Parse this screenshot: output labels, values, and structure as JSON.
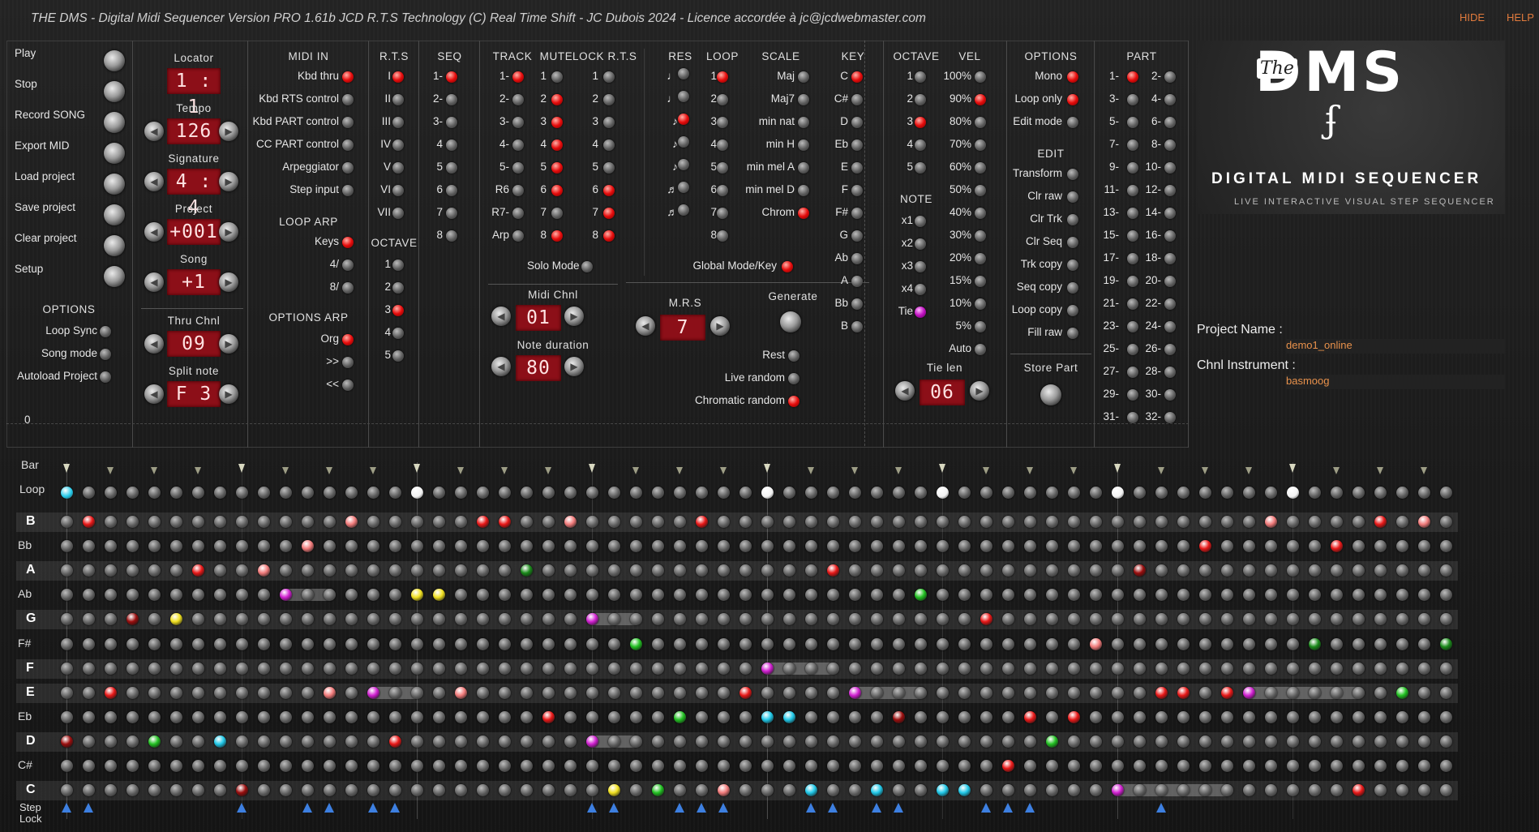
{
  "app": {
    "title": "THE DMS - Digital Midi Sequencer Version PRO 1.61b JCD R.T.S Technology (C) Real Time Shift - JC Dubois 2024 - Licence accordée à jc@jcdwebmaster.com",
    "hide": "HIDE",
    "help": "HELP"
  },
  "transport": {
    "items": [
      "Play",
      "Stop",
      "Record SONG",
      "Export MID",
      "Load project",
      "Save project",
      "Clear project",
      "Setup"
    ],
    "options_header": "OPTIONS",
    "options": [
      "Loop Sync",
      "Song mode",
      "Autoload Project"
    ],
    "zero": "0"
  },
  "displays": {
    "locator_label": "Locator",
    "locator": "1 : 1",
    "tempo_label": "Tempo",
    "tempo": "126",
    "signature_label": "Signature",
    "signature": "4 : 4",
    "project_label": "Project",
    "project": "+001",
    "song_label": "Song",
    "song": "+1",
    "thru_label": "Thru Chnl",
    "thru": "09",
    "split_label": "Split note",
    "split": "F 3"
  },
  "midi_in": {
    "header": "MIDI IN",
    "items": [
      "Kbd thru",
      "Kbd RTS control",
      "Kbd PART control",
      "CC PART control",
      "Arpeggiator",
      "Step input"
    ],
    "states": [
      true,
      false,
      false,
      false,
      false,
      false
    ],
    "loop_arp_header": "LOOP ARP",
    "loop_arp": [
      "Keys",
      "4/",
      "8/"
    ],
    "loop_arp_states": [
      true,
      false,
      false
    ],
    "options_arp_header": "OPTIONS ARP",
    "options_arp": [
      "Org",
      ">>",
      "<<"
    ],
    "options_arp_states": [
      true,
      false,
      false
    ]
  },
  "rts": {
    "header": "R.T.S",
    "items": [
      "I",
      "II",
      "III",
      "IV",
      "V",
      "VI",
      "VII"
    ],
    "states": [
      true,
      false,
      false,
      false,
      false,
      false,
      false
    ],
    "octave_header": "OCTAVE",
    "octaves": [
      "1",
      "2",
      "3",
      "4",
      "5"
    ],
    "octave_states": [
      false,
      false,
      true,
      false,
      false
    ]
  },
  "seq": {
    "header": "SEQ",
    "items": [
      "1-",
      "2-",
      "3-",
      "4",
      "5",
      "6",
      "7",
      "8"
    ],
    "states": [
      true,
      false,
      false,
      false,
      false,
      false,
      false,
      false
    ]
  },
  "track": {
    "header": "TRACK",
    "mute_header": "MUTE",
    "lock_header": "LOCK R.T.S",
    "tracks": [
      "1-",
      "2-",
      "3-",
      "4-",
      "5-",
      "R6",
      "R7-",
      "Arp"
    ],
    "track_states": [
      true,
      false,
      false,
      false,
      false,
      false,
      false,
      false
    ],
    "mute": [
      "1",
      "2",
      "3",
      "4",
      "5",
      "6",
      "7",
      "8"
    ],
    "mute_states": [
      false,
      true,
      true,
      true,
      true,
      true,
      false,
      true
    ],
    "lock": [
      "1",
      "2",
      "3",
      "4",
      "5",
      "6",
      "7",
      "8"
    ],
    "lock_states": [
      false,
      false,
      false,
      false,
      false,
      true,
      true,
      true
    ],
    "solo": "Solo Mode",
    "midi_chnl_label": "Midi Chnl",
    "midi_chnl": "01",
    "note_dur_label": "Note duration",
    "note_dur": "80"
  },
  "res_loop": {
    "res_header": "RES",
    "res": [
      "♩",
      "♩",
      "♪",
      "♪",
      "♪",
      "♬",
      "♬"
    ],
    "res_states": [
      false,
      false,
      true,
      false,
      false,
      false,
      false
    ],
    "loop_header": "LOOP",
    "loops": [
      "1",
      "2",
      "3",
      "4",
      "5",
      "6",
      "7",
      "8"
    ],
    "loop_states": [
      true,
      false,
      false,
      false,
      false,
      false,
      false,
      false
    ],
    "mrs_label": "M.R.S",
    "mrs": "7",
    "rest": "Rest",
    "live_random": "Live random",
    "chromatic_random": "Chromatic random",
    "chromatic_random_state": true
  },
  "scale": {
    "header": "SCALE",
    "items": [
      "Maj",
      "Maj7",
      "min nat",
      "min H",
      "min mel A",
      "min mel D",
      "Chrom"
    ],
    "states": [
      false,
      false,
      false,
      false,
      false,
      false,
      true
    ],
    "key_header": "KEY",
    "keys": [
      "C",
      "C#",
      "D",
      "Eb",
      "E",
      "F",
      "F#",
      "G",
      "Ab",
      "A",
      "Bb",
      "B"
    ],
    "key_states": [
      true,
      false,
      false,
      false,
      false,
      false,
      false,
      false,
      false,
      false,
      false,
      false
    ],
    "global": "Global Mode/Key",
    "generate": "Generate"
  },
  "octave_vel": {
    "octave_header": "OCTAVE",
    "octaves": [
      "1",
      "2",
      "3",
      "4",
      "5"
    ],
    "octave_states": [
      false,
      false,
      true,
      false,
      false
    ],
    "note_header": "NOTE",
    "notes": [
      "x1",
      "x2",
      "x3",
      "x4",
      "Tie"
    ],
    "vel_header": "VEL",
    "vels": [
      "100%",
      "90%",
      "80%",
      "70%",
      "60%",
      "50%",
      "40%",
      "30%",
      "20%",
      "15%",
      "10%",
      "5%",
      "Auto"
    ],
    "vel_states": [
      false,
      true,
      false,
      false,
      false,
      false,
      false,
      false,
      false,
      false,
      false,
      false,
      false
    ],
    "tie_len_label": "Tie len",
    "tie_len": "06"
  },
  "options": {
    "header": "OPTIONS",
    "items": [
      "Mono",
      "Loop only",
      "Edit mode"
    ],
    "states": [
      true,
      true,
      false
    ],
    "edit_header": "EDIT",
    "edit": [
      "Transform",
      "Clr raw",
      "Clr Trk",
      "Clr Seq",
      "Trk copy",
      "Seq copy",
      "Loop copy",
      "Fill raw"
    ],
    "store_part": "Store Part"
  },
  "part": {
    "header": "PART",
    "pairs": [
      [
        "1-",
        "2-"
      ],
      [
        "3-",
        "4-"
      ],
      [
        "5-",
        "6-"
      ],
      [
        "7-",
        "8-"
      ],
      [
        "9-",
        "10-"
      ],
      [
        "11-",
        "12-"
      ],
      [
        "13-",
        "14-"
      ],
      [
        "15-",
        "16-"
      ],
      [
        "17-",
        "18-"
      ],
      [
        "19-",
        "20-"
      ],
      [
        "21-",
        "22-"
      ],
      [
        "23-",
        "24-"
      ],
      [
        "25-",
        "26-"
      ],
      [
        "27-",
        "28-"
      ],
      [
        "29-",
        "30-"
      ],
      [
        "31-",
        "32-"
      ]
    ]
  },
  "logo": {
    "the": "The",
    "name": "DMS",
    "symbol": "ʄ",
    "subtitle": "DIGITAL MIDI SEQUENCER",
    "tagline": "LIVE INTERACTIVE VISUAL STEP SEQUENCER"
  },
  "project_info": {
    "name_label": "Project Name :",
    "name": "demo1_online",
    "instrument_label": "Chnl Instrument :",
    "instrument": "basmoog"
  },
  "grid": {
    "bar_label": "Bar",
    "loop_label": "Loop",
    "step_label": "Step",
    "lock_label": "Lock",
    "rows": [
      "B",
      "Bb",
      "A",
      "Ab",
      "G",
      "F#",
      "F",
      "E",
      "Eb",
      "D",
      "C#",
      "C"
    ],
    "bold_rows": [
      "B",
      "A",
      "G",
      "F",
      "E",
      "D",
      "C"
    ],
    "steps": 64,
    "colors": {
      "red": "#e81818",
      "pink": "#f07a7a",
      "green": "#22c022",
      "dkgreen": "#1a8a1a",
      "yellow": "#f0e020",
      "cyan": "#20c8e8",
      "magenta": "#d020d0",
      "dkred": "#9a0e0e",
      "white": "#f2f2f2"
    },
    "notes": [
      {
        "row": 0,
        "step": 1,
        "c": "red"
      },
      {
        "row": 0,
        "step": 13,
        "c": "pink"
      },
      {
        "row": 0,
        "step": 19,
        "c": "red"
      },
      {
        "row": 0,
        "step": 20,
        "c": "red"
      },
      {
        "row": 0,
        "step": 23,
        "c": "pink"
      },
      {
        "row": 0,
        "step": 29,
        "c": "red"
      },
      {
        "row": 0,
        "step": 55,
        "c": "pink"
      },
      {
        "row": 0,
        "step": 60,
        "c": "red"
      },
      {
        "row": 0,
        "step": 62,
        "c": "pink"
      },
      {
        "row": 1,
        "step": 11,
        "c": "pink"
      },
      {
        "row": 1,
        "step": 52,
        "c": "red"
      },
      {
        "row": 1,
        "step": 58,
        "c": "red"
      },
      {
        "row": 2,
        "step": 6,
        "c": "red"
      },
      {
        "row": 2,
        "step": 9,
        "c": "pink"
      },
      {
        "row": 2,
        "step": 21,
        "c": "dkgreen"
      },
      {
        "row": 2,
        "step": 35,
        "c": "red"
      },
      {
        "row": 2,
        "step": 49,
        "c": "dkred"
      },
      {
        "row": 3,
        "step": 10,
        "c": "magenta",
        "len": 3
      },
      {
        "row": 3,
        "step": 16,
        "c": "yellow"
      },
      {
        "row": 3,
        "step": 17,
        "c": "yellow"
      },
      {
        "row": 3,
        "step": 39,
        "c": "green"
      },
      {
        "row": 4,
        "step": 3,
        "c": "dkred"
      },
      {
        "row": 4,
        "step": 5,
        "c": "yellow"
      },
      {
        "row": 4,
        "step": 24,
        "c": "magenta",
        "len": 3
      },
      {
        "row": 4,
        "step": 42,
        "c": "red"
      },
      {
        "row": 5,
        "step": 26,
        "c": "green"
      },
      {
        "row": 5,
        "step": 47,
        "c": "pink"
      },
      {
        "row": 5,
        "step": 57,
        "c": "dkgreen"
      },
      {
        "row": 5,
        "step": 63,
        "c": "dkgreen"
      },
      {
        "row": 6,
        "step": 32,
        "c": "magenta",
        "len": 4
      },
      {
        "row": 7,
        "step": 2,
        "c": "red"
      },
      {
        "row": 7,
        "step": 12,
        "c": "pink"
      },
      {
        "row": 7,
        "step": 14,
        "c": "magenta",
        "len": 3
      },
      {
        "row": 7,
        "step": 18,
        "c": "pink"
      },
      {
        "row": 7,
        "step": 31,
        "c": "red"
      },
      {
        "row": 7,
        "step": 36,
        "c": "magenta",
        "len": 4
      },
      {
        "row": 7,
        "step": 50,
        "c": "red"
      },
      {
        "row": 7,
        "step": 51,
        "c": "red"
      },
      {
        "row": 7,
        "step": 53,
        "c": "red"
      },
      {
        "row": 7,
        "step": 54,
        "c": "magenta",
        "len": 6
      },
      {
        "row": 7,
        "step": 61,
        "c": "green"
      },
      {
        "row": 8,
        "step": 22,
        "c": "red"
      },
      {
        "row": 8,
        "step": 28,
        "c": "green"
      },
      {
        "row": 8,
        "step": 32,
        "c": "cyan"
      },
      {
        "row": 8,
        "step": 33,
        "c": "cyan"
      },
      {
        "row": 8,
        "step": 38,
        "c": "dkred"
      },
      {
        "row": 8,
        "step": 44,
        "c": "red"
      },
      {
        "row": 8,
        "step": 46,
        "c": "red"
      },
      {
        "row": 9,
        "step": 0,
        "c": "dkred"
      },
      {
        "row": 9,
        "step": 4,
        "c": "green"
      },
      {
        "row": 9,
        "step": 7,
        "c": "cyan"
      },
      {
        "row": 9,
        "step": 15,
        "c": "red"
      },
      {
        "row": 9,
        "step": 24,
        "c": "magenta",
        "len": 3
      },
      {
        "row": 9,
        "step": 45,
        "c": "green"
      },
      {
        "row": 10,
        "step": 43,
        "c": "red"
      },
      {
        "row": 11,
        "step": 8,
        "c": "dkred"
      },
      {
        "row": 11,
        "step": 25,
        "c": "yellow"
      },
      {
        "row": 11,
        "step": 27,
        "c": "green"
      },
      {
        "row": 11,
        "step": 30,
        "c": "pink"
      },
      {
        "row": 11,
        "step": 34,
        "c": "cyan"
      },
      {
        "row": 11,
        "step": 37,
        "c": "cyan"
      },
      {
        "row": 11,
        "step": 40,
        "c": "cyan"
      },
      {
        "row": 11,
        "step": 41,
        "c": "cyan"
      },
      {
        "row": 11,
        "step": 48,
        "c": "magenta",
        "len": 6
      },
      {
        "row": 11,
        "step": 59,
        "c": "red"
      }
    ],
    "loop_markers": [
      {
        "step": 0,
        "c": "cyan"
      },
      {
        "step": 16,
        "c": "white"
      },
      {
        "step": 32,
        "c": "white"
      },
      {
        "step": 40,
        "c": "white"
      },
      {
        "step": 48,
        "c": "white"
      },
      {
        "step": 56,
        "c": "white"
      }
    ],
    "step_lock": [
      0,
      1,
      8,
      11,
      12,
      14,
      15,
      24,
      25,
      28,
      29,
      30,
      34,
      35,
      37,
      38,
      42,
      43,
      44,
      50
    ]
  }
}
